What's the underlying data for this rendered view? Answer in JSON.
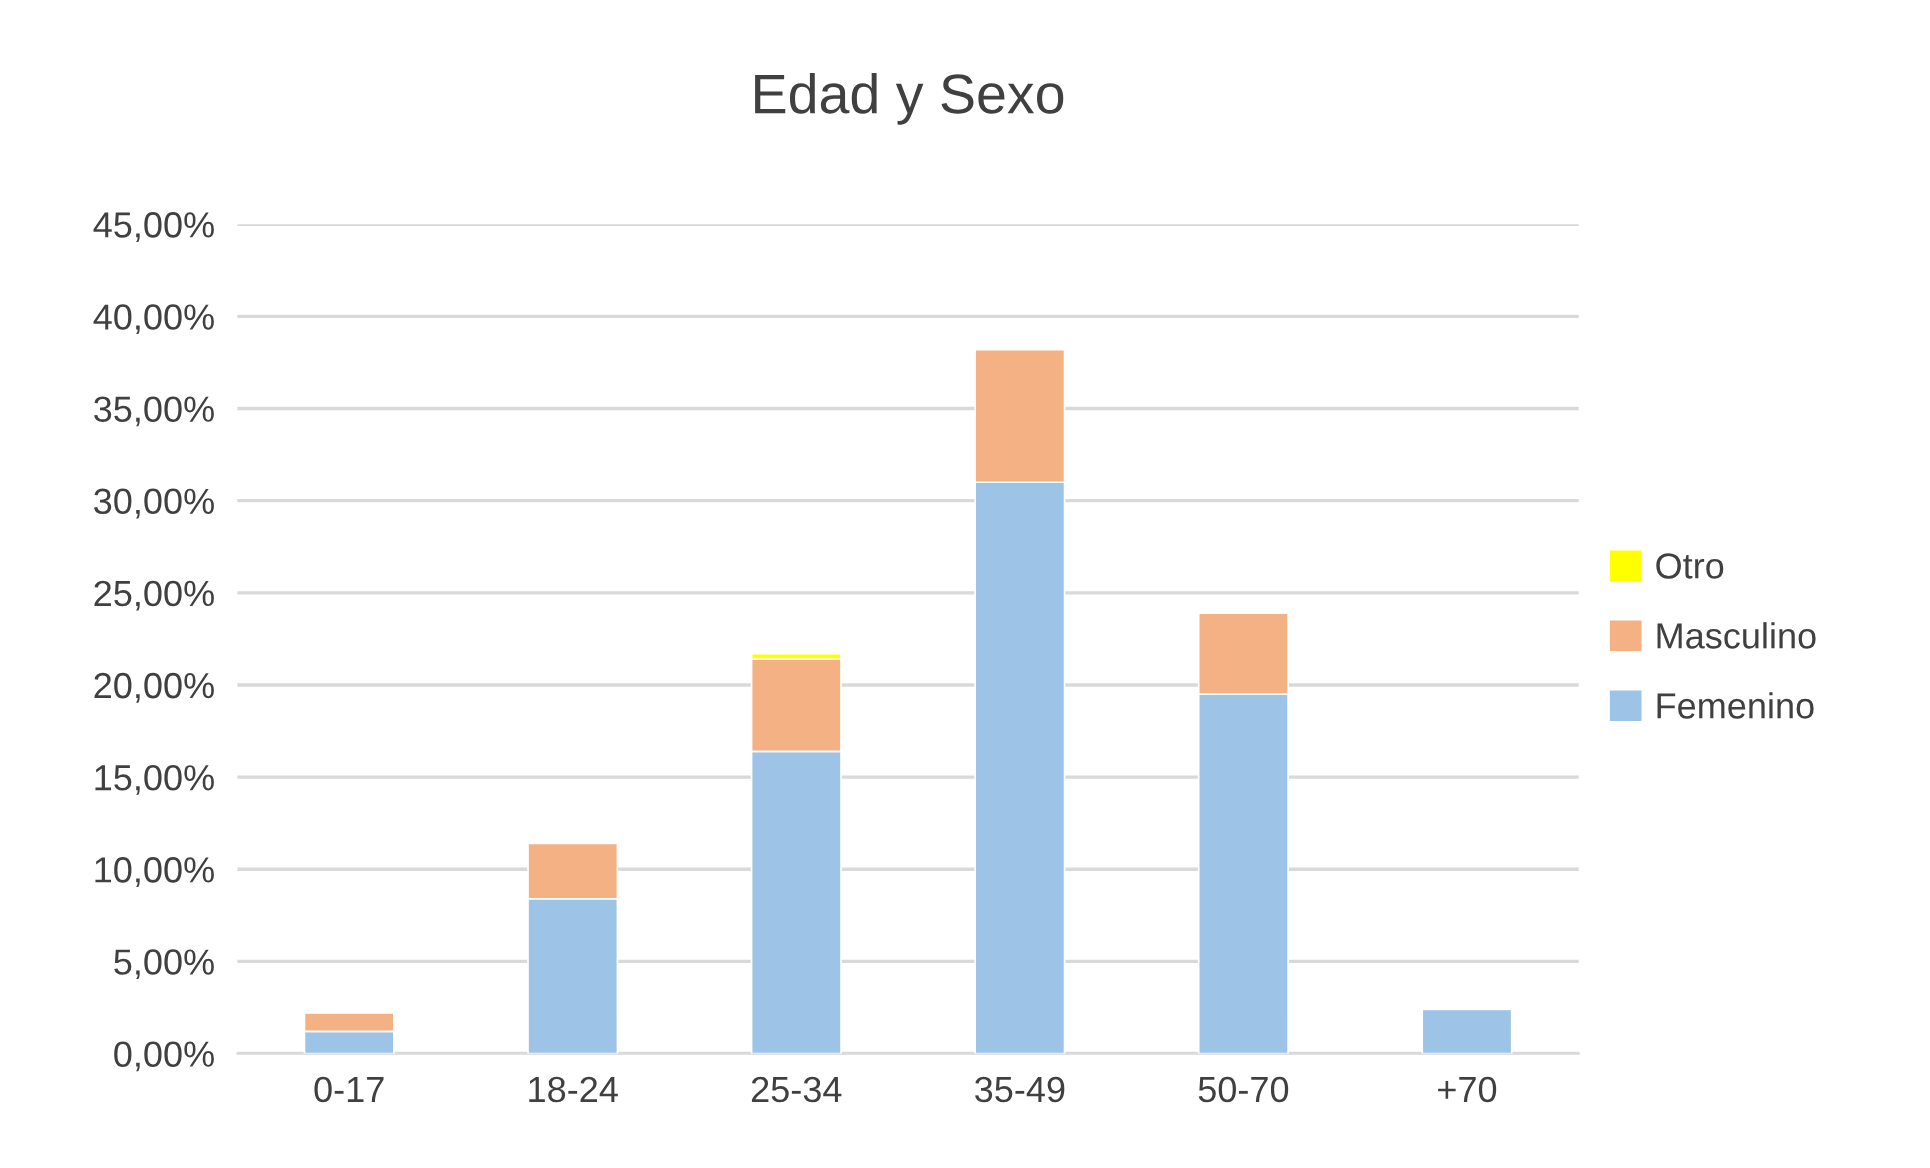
{
  "chart_data": {
    "type": "bar",
    "title": "Edad y Sexo",
    "stacked": true,
    "categories": [
      "0-17",
      "18-24",
      "25-34",
      "35-49",
      "50-70",
      "+70"
    ],
    "series": [
      {
        "name": "Femenino",
        "color": "#9dc3e6",
        "values": [
          1.2,
          8.4,
          16.4,
          31.0,
          19.5,
          2.4
        ]
      },
      {
        "name": "Masculino",
        "color": "#f4b183",
        "values": [
          1.0,
          3.0,
          5.0,
          7.2,
          4.4,
          null
        ]
      },
      {
        "name": "Otro",
        "color": "#ffff00",
        "values": [
          null,
          null,
          0.3,
          null,
          null,
          null
        ]
      }
    ],
    "ylim": [
      0,
      45
    ],
    "yticks": [
      {
        "value": 0,
        "label": "0,00%"
      },
      {
        "value": 5,
        "label": "5,00%"
      },
      {
        "value": 10,
        "label": "10,00%"
      },
      {
        "value": 15,
        "label": "15,00%"
      },
      {
        "value": 20,
        "label": "20,00%"
      },
      {
        "value": 25,
        "label": "25,00%"
      },
      {
        "value": 30,
        "label": "30,00%"
      },
      {
        "value": 35,
        "label": "35,00%"
      },
      {
        "value": 40,
        "label": "40,00%"
      },
      {
        "value": 45,
        "label": "45,00%"
      }
    ],
    "grid": "y",
    "legend": "right"
  }
}
